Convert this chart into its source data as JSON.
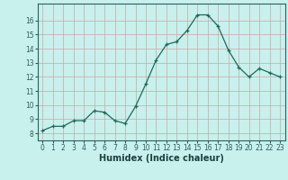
{
  "x": [
    0,
    1,
    2,
    3,
    4,
    5,
    6,
    7,
    8,
    9,
    10,
    11,
    12,
    13,
    14,
    15,
    16,
    17,
    18,
    19,
    20,
    21,
    22,
    23
  ],
  "y": [
    8.2,
    8.5,
    8.5,
    8.9,
    8.9,
    9.6,
    9.5,
    8.9,
    8.7,
    9.9,
    11.5,
    13.2,
    14.3,
    14.5,
    15.3,
    16.4,
    16.4,
    15.6,
    13.9,
    12.7,
    12.0,
    12.6,
    12.3,
    12.0
  ],
  "xlim": [
    -0.5,
    23.5
  ],
  "ylim": [
    7.5,
    17.2
  ],
  "yticks": [
    8,
    9,
    10,
    11,
    12,
    13,
    14,
    15,
    16
  ],
  "xticks": [
    0,
    1,
    2,
    3,
    4,
    5,
    6,
    7,
    8,
    9,
    10,
    11,
    12,
    13,
    14,
    15,
    16,
    17,
    18,
    19,
    20,
    21,
    22,
    23
  ],
  "xlabel": "Humidex (Indice chaleur)",
  "line_color": "#1a6b5a",
  "marker": "+",
  "bg_color": "#c8f0ec",
  "grid_color": "#c8a8a8",
  "axis_color": "#2a6060",
  "tick_color": "#2a6060",
  "label_color": "#1a4040",
  "xlabel_fontsize": 7.0,
  "tick_fontsize": 5.5
}
